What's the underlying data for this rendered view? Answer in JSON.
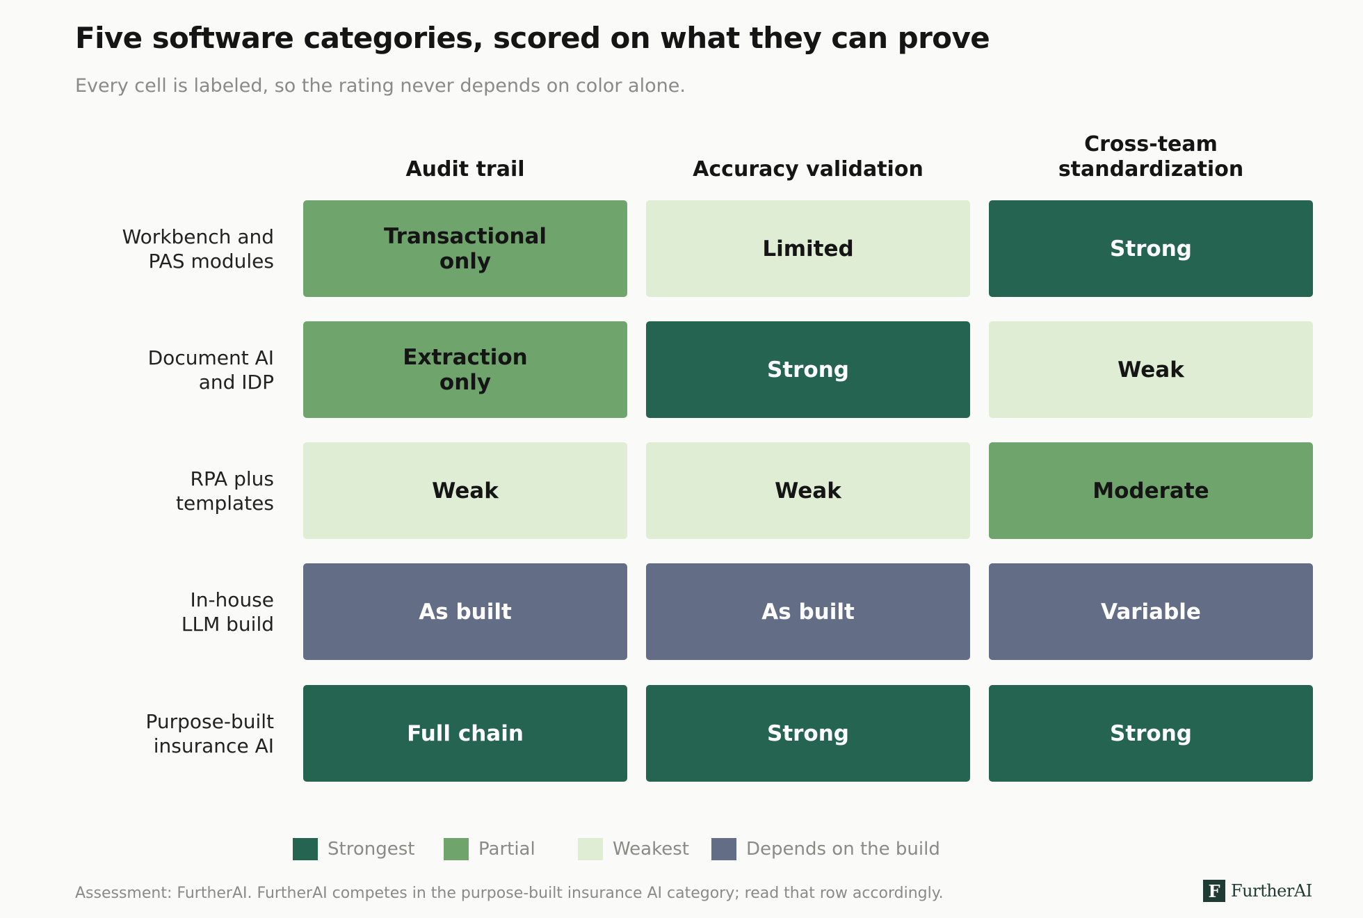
{
  "chart_data": {
    "type": "table",
    "title": "Five software categories, scored on what they can prove",
    "subtitle": "Every cell is labeled, so the rating never depends on color alone.",
    "columns": [
      "Audit trail",
      "Accuracy validation",
      "Cross-team\nstandardization"
    ],
    "rows": [
      {
        "label": "Workbench and\nPAS modules",
        "cells": [
          {
            "text": "Transactional\nonly",
            "level": "partial"
          },
          {
            "text": "Limited",
            "level": "weakest"
          },
          {
            "text": "Strong",
            "level": "strongest"
          }
        ]
      },
      {
        "label": "Document AI\nand IDP",
        "cells": [
          {
            "text": "Extraction\nonly",
            "level": "partial"
          },
          {
            "text": "Strong",
            "level": "strongest"
          },
          {
            "text": "Weak",
            "level": "weakest"
          }
        ]
      },
      {
        "label": "RPA plus\ntemplates",
        "cells": [
          {
            "text": "Weak",
            "level": "weakest"
          },
          {
            "text": "Weak",
            "level": "weakest"
          },
          {
            "text": "Moderate",
            "level": "partial"
          }
        ]
      },
      {
        "label": "In-house\nLLM build",
        "cells": [
          {
            "text": "As built",
            "level": "depends"
          },
          {
            "text": "As built",
            "level": "depends"
          },
          {
            "text": "Variable",
            "level": "depends"
          }
        ]
      },
      {
        "label": "Purpose-built\ninsurance AI",
        "cells": [
          {
            "text": "Full chain",
            "level": "strongest"
          },
          {
            "text": "Strong",
            "level": "strongest"
          },
          {
            "text": "Strong",
            "level": "strongest"
          }
        ]
      }
    ],
    "legend": [
      {
        "key": "strongest",
        "label": "Strongest",
        "color": "#256450",
        "text_color": "#ffffff"
      },
      {
        "key": "partial",
        "label": "Partial",
        "color": "#6fa56c",
        "text_color": "#151515"
      },
      {
        "key": "weakest",
        "label": "Weakest",
        "color": "#dfedd4",
        "text_color": "#151515"
      },
      {
        "key": "depends",
        "label": "Depends on the build",
        "color": "#636e86",
        "text_color": "#ffffff"
      }
    ]
  },
  "footnote": "Assessment: FurtherAI. FurtherAI competes in the purpose-built insurance AI category; read that row accordingly.",
  "brand": {
    "mark": "F",
    "name": "FurtherAI"
  }
}
